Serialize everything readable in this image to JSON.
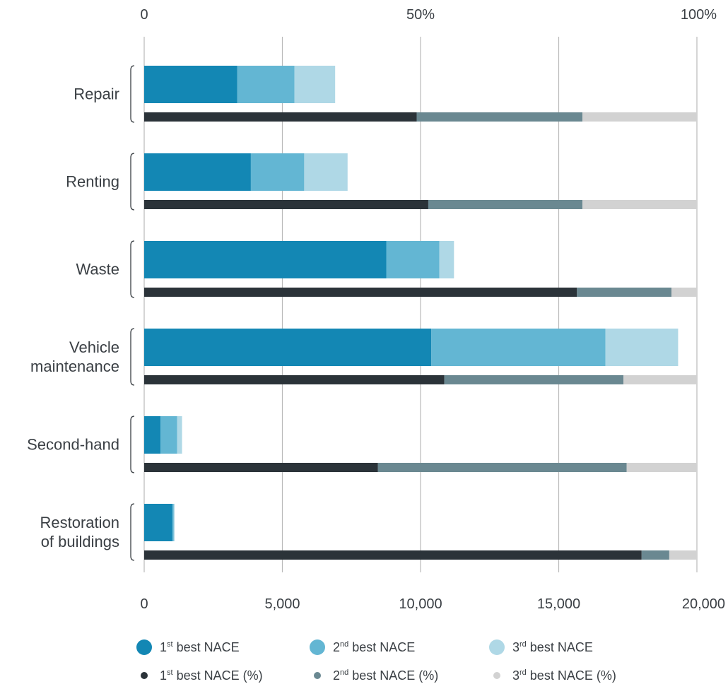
{
  "chart_data": {
    "type": "bar",
    "orientation": "horizontal",
    "stacked": true,
    "categories": [
      [
        "Repair"
      ],
      [
        "Renting"
      ],
      [
        "Waste"
      ],
      [
        "Vehicle",
        "maintenance"
      ],
      [
        "Second-hand"
      ],
      [
        "Restoration",
        "of buildings"
      ]
    ],
    "bottom_axis": {
      "ticks": [
        0,
        5000,
        10000,
        15000,
        20000
      ],
      "tick_labels": [
        "0",
        "5,000",
        "10,000",
        "15,000",
        "20,000"
      ],
      "range": [
        0,
        20000
      ]
    },
    "top_axis": {
      "ticks": [
        0,
        50,
        100
      ],
      "tick_labels": [
        "0",
        "50%",
        "100%"
      ],
      "range": [
        0,
        100
      ]
    },
    "count_series": [
      {
        "name": "1st best NACE",
        "color": "#1387b4",
        "values": [
          3370,
          3860,
          8760,
          10390,
          590,
          1020
        ]
      },
      {
        "name": "2nd best NACE",
        "color": "#63b6d3",
        "values": [
          2070,
          1930,
          1920,
          6300,
          600,
          50
        ]
      },
      {
        "name": "3rd best NACE",
        "color": "#afd8e6",
        "values": [
          1470,
          1570,
          530,
          2630,
          180,
          30
        ]
      }
    ],
    "percent_series": [
      {
        "name": "1st best NACE (%)",
        "color": "#2b3339",
        "values": [
          49.3,
          51.4,
          78.3,
          54.3,
          42.3,
          90.0
        ]
      },
      {
        "name": "2nd best NACE (%)",
        "color": "#6a8891",
        "values": [
          30.0,
          27.9,
          17.1,
          32.4,
          45.0,
          5.0
        ]
      },
      {
        "name": "3rd best NACE (%)",
        "color": "#d2d2d2",
        "values": [
          20.7,
          20.7,
          4.6,
          13.3,
          12.7,
          5.0
        ]
      }
    ],
    "grid": true,
    "legend": {
      "placement": "bottom",
      "count_items": [
        {
          "pre": "1",
          "sup": "st",
          "post": " best NACE"
        },
        {
          "pre": "2",
          "sup": "nd",
          "post": " best NACE"
        },
        {
          "pre": "3",
          "sup": "rd",
          "post": " best NACE"
        }
      ],
      "percent_items": [
        {
          "pre": "1",
          "sup": "st",
          "post": " best NACE (%)"
        },
        {
          "pre": "2",
          "sup": "nd",
          "post": " best NACE (%)"
        },
        {
          "pre": "3",
          "sup": "rd",
          "post": " best NACE (%)"
        }
      ]
    }
  }
}
